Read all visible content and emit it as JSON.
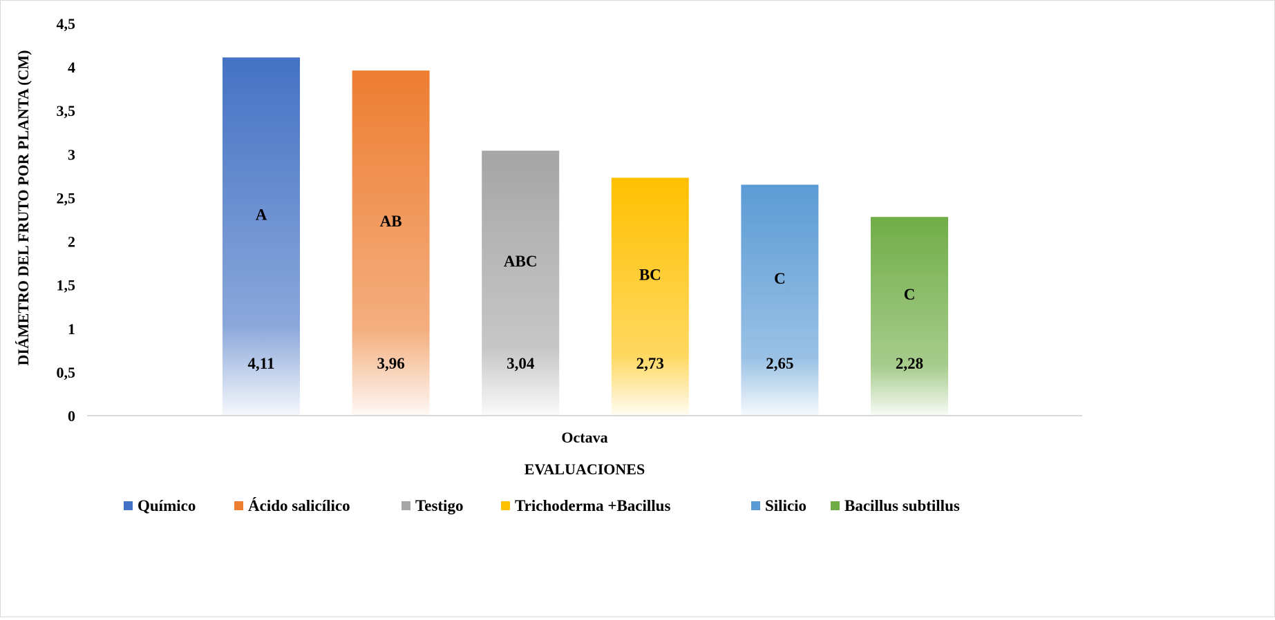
{
  "chart_data": {
    "type": "bar",
    "title": "",
    "xlabel": "EVALUACIONES",
    "ylabel": "DIÁMETRO DEL FRUTO POR PLANTA (CM)",
    "categories": [
      "Octava"
    ],
    "ylim": [
      0,
      4.5
    ],
    "yticks": [
      "0",
      "0,5",
      "1",
      "1,5",
      "2",
      "2,5",
      "3",
      "3,5",
      "4",
      "4,5"
    ],
    "grid": false,
    "legend_position": "bottom",
    "series": [
      {
        "name": "Químico",
        "values": [
          4.11
        ],
        "value_label": "4,11",
        "group_letter": "A",
        "color": "#4472c4"
      },
      {
        "name": "Ácido salicílico",
        "values": [
          3.96
        ],
        "value_label": "3,96",
        "group_letter": "AB",
        "color": "#ed7d31"
      },
      {
        "name": "Testigo",
        "values": [
          3.04
        ],
        "value_label": "3,04",
        "group_letter": "ABC",
        "color": "#a5a5a5"
      },
      {
        "name": "Trichoderma +Bacillus",
        "values": [
          2.73
        ],
        "value_label": "2,73",
        "group_letter": "BC",
        "color": "#ffc000"
      },
      {
        "name": "Silicio",
        "values": [
          2.65
        ],
        "value_label": "2,65",
        "group_letter": "C",
        "color": "#5b9bd5"
      },
      {
        "name": "Bacillus subtillus",
        "values": [
          2.28
        ],
        "value_label": "2,28",
        "group_letter": "C",
        "color": "#70ad47"
      }
    ]
  }
}
